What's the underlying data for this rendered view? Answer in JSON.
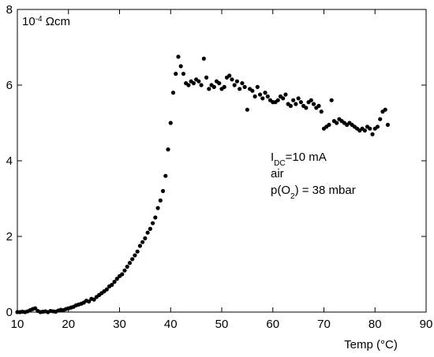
{
  "chart_data": {
    "type": "scatter",
    "ylabel": [
      "10",
      "-4",
      " Ωcm"
    ],
    "xlabel": "Temp (°C)",
    "annotations": [
      [
        "I",
        "DC",
        "=10 mA"
      ],
      [
        "air"
      ],
      [
        "p(O",
        "2",
        ") = 38 mbar"
      ]
    ],
    "color": "#000000",
    "xlim": [
      10,
      90
    ],
    "xticks": [
      10,
      20,
      30,
      40,
      50,
      60,
      70,
      80,
      90
    ],
    "ylim": [
      0,
      8
    ],
    "yticks": [
      0,
      2,
      4,
      6,
      8
    ],
    "x": [
      10,
      10.5,
      11,
      11.5,
      12,
      12.5,
      13,
      13.5,
      14,
      14.5,
      15,
      15.5,
      16,
      16.5,
      17,
      17.5,
      18,
      18.5,
      19,
      19.5,
      20,
      20.5,
      21,
      21.5,
      22,
      22.5,
      23,
      23.5,
      24,
      24.5,
      25,
      25.5,
      26,
      26.5,
      27,
      27.5,
      28,
      28.5,
      29,
      29.5,
      30,
      30.5,
      31,
      31.5,
      32,
      32.5,
      33,
      33.5,
      34,
      34.5,
      35,
      35.5,
      36,
      36.5,
      37,
      37.5,
      38,
      38.5,
      39,
      39.5,
      40,
      40.5,
      41,
      41.5,
      42,
      42.5,
      43,
      43.5,
      44,
      44.5,
      45,
      45.5,
      46,
      46.5,
      47,
      47.5,
      48,
      48.5,
      49,
      49.5,
      50,
      50.5,
      51,
      51.5,
      52,
      52.5,
      53,
      53.5,
      54,
      54.5,
      55,
      55.5,
      56,
      56.5,
      57,
      57.5,
      58,
      58.5,
      59,
      59.5,
      60,
      60.5,
      61,
      61.5,
      62,
      62.5,
      63,
      63.5,
      64,
      64.5,
      65,
      65.5,
      66,
      66.5,
      67,
      67.5,
      68,
      68.5,
      69,
      69.5,
      70,
      70.5,
      71,
      71.5,
      72,
      72.5,
      73,
      73.5,
      74,
      74.5,
      75,
      75.5,
      76,
      76.5,
      77,
      77.5,
      78,
      78.5,
      79,
      79.5,
      80,
      80.5,
      81,
      81.5,
      82,
      82.5
    ],
    "values": [
      0,
      0,
      0.01,
      0,
      0.02,
      0.05,
      0.08,
      0.1,
      0.03,
      0,
      0.01,
      0.02,
      0,
      0.03,
      0.02,
      0.01,
      0.04,
      0.06,
      0.05,
      0.08,
      0.1,
      0.12,
      0.14,
      0.18,
      0.2,
      0.22,
      0.25,
      0.3,
      0.28,
      0.35,
      0.33,
      0.4,
      0.45,
      0.5,
      0.55,
      0.6,
      0.68,
      0.72,
      0.8,
      0.88,
      0.95,
      1.0,
      1.1,
      1.2,
      1.3,
      1.4,
      1.5,
      1.6,
      1.75,
      1.85,
      1.95,
      2.1,
      2.2,
      2.35,
      2.5,
      2.75,
      2.95,
      3.2,
      3.6,
      4.3,
      5.0,
      5.8,
      6.3,
      6.75,
      6.5,
      6.3,
      6.05,
      6.0,
      6.1,
      6.05,
      6.15,
      6.1,
      6.0,
      6.7,
      6.2,
      5.9,
      6.0,
      5.95,
      6.1,
      6.05,
      5.9,
      5.95,
      6.2,
      6.25,
      6.15,
      6.0,
      6.1,
      5.9,
      6.05,
      5.95,
      5.35,
      5.9,
      5.85,
      5.7,
      5.95,
      5.75,
      5.65,
      5.8,
      5.7,
      5.6,
      5.55,
      5.55,
      5.6,
      5.7,
      5.65,
      5.75,
      5.5,
      5.45,
      5.6,
      5.5,
      5.65,
      5.55,
      5.45,
      5.4,
      5.55,
      5.6,
      5.5,
      5.4,
      5.45,
      5.3,
      4.85,
      4.9,
      4.95,
      5.6,
      5.05,
      5.0,
      5.1,
      5.05,
      5.0,
      4.95,
      5.0,
      4.95,
      4.9,
      4.85,
      4.8,
      4.85,
      4.8,
      4.9,
      4.85,
      4.7,
      4.85,
      4.9,
      5.1,
      5.3,
      5.35,
      4.95
    ]
  }
}
